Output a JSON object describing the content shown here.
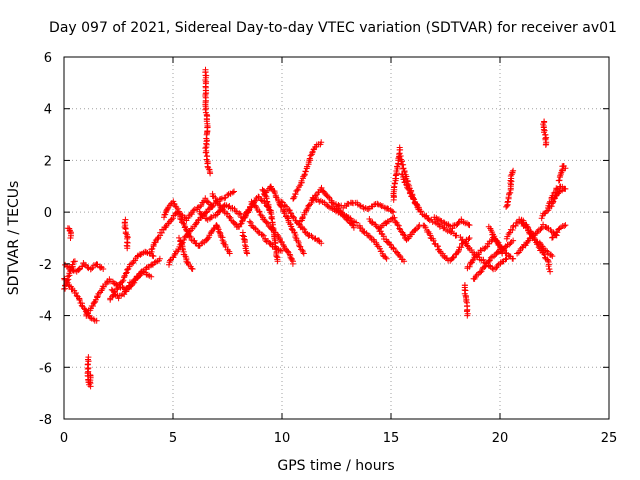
{
  "chart_data": {
    "type": "scatter",
    "title": "Day 097 of 2021, Sidereal Day-to-day VTEC variation (SDTVAR) for receiver av01",
    "xlabel": "GPS time / hours",
    "ylabel": "SDTVAR / TECUs",
    "xlim": [
      0,
      25
    ],
    "ylim": [
      -8,
      6
    ],
    "x_ticks": [
      0,
      5,
      10,
      15,
      20,
      25
    ],
    "y_ticks": [
      -8,
      -6,
      -4,
      -2,
      0,
      2,
      4,
      6
    ],
    "x_tick_labels": [
      "0",
      "5",
      "10",
      "15",
      "20",
      "25"
    ],
    "y_tick_labels": [
      "-8",
      "-6",
      "-4",
      "-2",
      "0",
      "2",
      "4",
      "6"
    ],
    "grid": true,
    "marker": "+",
    "color": "#ff0000",
    "series_name": "SDTVAR",
    "tracks": [
      [
        [
          0.0,
          -2.0
        ],
        [
          0.3,
          -2.2
        ],
        [
          0.6,
          -2.3
        ],
        [
          0.9,
          -2.0
        ],
        [
          1.2,
          -2.2
        ],
        [
          1.5,
          -2.0
        ],
        [
          1.8,
          -2.2
        ]
      ],
      [
        [
          0.0,
          -2.6
        ],
        [
          0.3,
          -2.9
        ],
        [
          0.6,
          -3.2
        ],
        [
          0.9,
          -3.7
        ],
        [
          1.2,
          -4.1
        ],
        [
          1.5,
          -4.2
        ]
      ],
      [
        [
          0.0,
          -3.0
        ],
        [
          0.2,
          -2.5
        ],
        [
          0.4,
          -2.0
        ],
        [
          0.5,
          -1.9
        ]
      ],
      [
        [
          0.2,
          -0.6
        ],
        [
          0.3,
          -0.8
        ],
        [
          0.3,
          -1.0
        ]
      ],
      [
        [
          1.1,
          -5.6
        ],
        [
          1.1,
          -6.2
        ],
        [
          1.1,
          -6.5
        ],
        [
          1.2,
          -6.7
        ],
        [
          1.2,
          -6.3
        ]
      ],
      [
        [
          1.0,
          -4.0
        ],
        [
          1.4,
          -3.5
        ],
        [
          1.7,
          -3.0
        ],
        [
          2.1,
          -2.6
        ],
        [
          2.4,
          -2.8
        ],
        [
          2.8,
          -3.0
        ],
        [
          3.2,
          -2.6
        ],
        [
          3.6,
          -2.3
        ],
        [
          4.0,
          -2.5
        ]
      ],
      [
        [
          2.1,
          -3.4
        ],
        [
          2.4,
          -3.0
        ],
        [
          2.7,
          -2.6
        ],
        [
          3.0,
          -2.1
        ],
        [
          3.4,
          -1.7
        ],
        [
          3.7,
          -1.5
        ],
        [
          4.1,
          -1.7
        ]
      ],
      [
        [
          2.2,
          -3.0
        ],
        [
          2.5,
          -3.3
        ],
        [
          2.8,
          -3.1
        ],
        [
          3.1,
          -2.8
        ],
        [
          3.4,
          -2.5
        ],
        [
          3.7,
          -2.2
        ],
        [
          4.1,
          -2.0
        ],
        [
          4.4,
          -1.8
        ]
      ],
      [
        [
          2.8,
          -0.3
        ],
        [
          2.8,
          -0.6
        ],
        [
          2.9,
          -1.0
        ],
        [
          2.9,
          -1.4
        ]
      ],
      [
        [
          4.0,
          -1.5
        ],
        [
          4.3,
          -1.0
        ],
        [
          4.6,
          -0.6
        ],
        [
          4.9,
          -0.3
        ],
        [
          5.2,
          0.0
        ],
        [
          5.5,
          -0.5
        ],
        [
          5.8,
          -1.0
        ],
        [
          6.2,
          -1.3
        ],
        [
          6.6,
          -1.0
        ],
        [
          7.0,
          -0.5
        ]
      ],
      [
        [
          4.6,
          -0.2
        ],
        [
          4.8,
          0.2
        ],
        [
          5.0,
          0.4
        ],
        [
          5.3,
          0.0
        ],
        [
          5.6,
          -0.3
        ],
        [
          5.9,
          0.0
        ],
        [
          6.2,
          0.2
        ],
        [
          6.5,
          0.5
        ],
        [
          6.8,
          0.2
        ]
      ],
      [
        [
          4.8,
          -2.0
        ],
        [
          5.1,
          -1.6
        ],
        [
          5.4,
          -1.2
        ],
        [
          5.7,
          -0.8
        ],
        [
          6.0,
          -0.5
        ],
        [
          6.3,
          -0.2
        ],
        [
          6.6,
          0.1
        ],
        [
          7.0,
          0.4
        ],
        [
          7.4,
          0.6
        ],
        [
          7.8,
          0.8
        ]
      ],
      [
        [
          5.3,
          -1.0
        ],
        [
          5.5,
          -1.6
        ],
        [
          5.7,
          -2.0
        ],
        [
          5.9,
          -2.2
        ]
      ],
      [
        [
          6.5,
          5.5
        ],
        [
          6.5,
          5.2
        ],
        [
          6.5,
          4.8
        ],
        [
          6.5,
          4.4
        ],
        [
          6.5,
          4.0
        ],
        [
          6.6,
          3.3
        ],
        [
          6.5,
          2.4
        ],
        [
          6.6,
          1.8
        ],
        [
          6.7,
          1.5
        ]
      ],
      [
        [
          6.2,
          0.0
        ],
        [
          6.6,
          -0.3
        ],
        [
          7.0,
          -0.1
        ],
        [
          7.4,
          0.3
        ],
        [
          7.8,
          0.1
        ],
        [
          8.2,
          -0.2
        ],
        [
          8.6,
          0.2
        ]
      ],
      [
        [
          6.8,
          0.7
        ],
        [
          7.1,
          0.3
        ],
        [
          7.4,
          0.0
        ],
        [
          7.7,
          -0.3
        ],
        [
          8.0,
          -0.6
        ],
        [
          8.3,
          -0.2
        ],
        [
          8.6,
          0.3
        ],
        [
          8.9,
          0.6
        ],
        [
          9.2,
          0.4
        ],
        [
          9.5,
          0.0
        ]
      ],
      [
        [
          7.0,
          -0.5
        ],
        [
          7.2,
          -0.9
        ],
        [
          7.4,
          -1.3
        ],
        [
          7.6,
          -1.6
        ]
      ],
      [
        [
          8.2,
          -0.8
        ],
        [
          8.3,
          -1.2
        ],
        [
          8.4,
          -1.6
        ]
      ],
      [
        [
          8.5,
          -0.4
        ],
        [
          8.8,
          -0.7
        ],
        [
          9.1,
          -0.9
        ],
        [
          9.4,
          -1.2
        ],
        [
          9.7,
          -1.4
        ],
        [
          10.0,
          -1.5
        ]
      ],
      [
        [
          8.6,
          0.4
        ],
        [
          8.9,
          0.1
        ],
        [
          9.2,
          -0.3
        ],
        [
          9.5,
          -0.6
        ],
        [
          9.8,
          -0.9
        ],
        [
          10.1,
          -1.3
        ],
        [
          10.4,
          -1.7
        ],
        [
          10.5,
          -2.0
        ]
      ],
      [
        [
          9.1,
          0.9
        ],
        [
          9.3,
          0.5
        ],
        [
          9.5,
          -0.1
        ],
        [
          9.6,
          -0.7
        ],
        [
          9.7,
          -1.3
        ],
        [
          9.8,
          -1.9
        ]
      ],
      [
        [
          9.2,
          0.7
        ],
        [
          9.5,
          1.0
        ],
        [
          9.8,
          0.5
        ],
        [
          10.1,
          0.0
        ],
        [
          10.4,
          -0.5
        ],
        [
          10.6,
          -0.9
        ],
        [
          10.8,
          -1.3
        ],
        [
          11.0,
          -1.6
        ]
      ],
      [
        [
          10.0,
          0.4
        ],
        [
          10.3,
          0.1
        ],
        [
          10.6,
          -0.3
        ],
        [
          10.9,
          -0.6
        ],
        [
          11.2,
          -0.9
        ],
        [
          11.5,
          -1.0
        ],
        [
          11.8,
          -1.2
        ]
      ],
      [
        [
          10.5,
          0.5
        ],
        [
          10.8,
          1.0
        ],
        [
          11.1,
          1.6
        ],
        [
          11.3,
          2.1
        ],
        [
          11.5,
          2.5
        ],
        [
          11.8,
          2.7
        ]
      ],
      [
        [
          10.8,
          -0.5
        ],
        [
          11.0,
          -0.1
        ],
        [
          11.2,
          0.2
        ],
        [
          11.5,
          0.6
        ],
        [
          11.8,
          0.9
        ],
        [
          12.1,
          0.6
        ],
        [
          12.4,
          0.3
        ],
        [
          12.7,
          0.0
        ],
        [
          13.0,
          -0.3
        ],
        [
          13.3,
          -0.6
        ]
      ],
      [
        [
          11.4,
          0.6
        ],
        [
          11.8,
          0.4
        ],
        [
          12.2,
          0.2
        ],
        [
          12.6,
          0.0
        ],
        [
          13.0,
          -0.2
        ],
        [
          13.4,
          -0.4
        ]
      ],
      [
        [
          12.5,
          0.3
        ],
        [
          12.8,
          0.2
        ],
        [
          13.2,
          0.4
        ],
        [
          13.5,
          0.3
        ],
        [
          13.9,
          0.1
        ],
        [
          14.3,
          0.3
        ],
        [
          14.7,
          0.2
        ],
        [
          15.1,
          0.0
        ]
      ],
      [
        [
          13.5,
          -0.5
        ],
        [
          13.8,
          -0.8
        ],
        [
          14.1,
          -1.0
        ],
        [
          14.4,
          -1.3
        ],
        [
          14.6,
          -1.6
        ],
        [
          14.8,
          -1.8
        ]
      ],
      [
        [
          14.0,
          -0.3
        ],
        [
          14.4,
          -0.6
        ],
        [
          14.7,
          -1.0
        ],
        [
          15.0,
          -1.3
        ],
        [
          15.3,
          -1.6
        ],
        [
          15.6,
          -1.9
        ]
      ],
      [
        [
          14.5,
          -0.6
        ],
        [
          14.8,
          -0.4
        ],
        [
          15.1,
          -0.2
        ],
        [
          15.4,
          -0.6
        ],
        [
          15.7,
          -1.1
        ],
        [
          16.0,
          -0.8
        ],
        [
          16.3,
          -0.5
        ]
      ],
      [
        [
          15.1,
          0.5
        ],
        [
          15.2,
          1.2
        ],
        [
          15.3,
          1.8
        ],
        [
          15.4,
          2.3
        ],
        [
          15.4,
          2.5
        ]
      ],
      [
        [
          15.4,
          2.2
        ],
        [
          15.6,
          1.6
        ],
        [
          15.8,
          1.1
        ],
        [
          16.0,
          0.6
        ],
        [
          16.2,
          0.2
        ],
        [
          16.5,
          -0.1
        ],
        [
          16.8,
          -0.3
        ],
        [
          17.2,
          -0.5
        ],
        [
          17.6,
          -0.7
        ],
        [
          18.0,
          -0.9
        ]
      ],
      [
        [
          15.5,
          1.5
        ],
        [
          15.7,
          1.0
        ],
        [
          15.9,
          0.7
        ],
        [
          16.1,
          0.4
        ],
        [
          16.3,
          0.1
        ]
      ],
      [
        [
          16.5,
          -0.5
        ],
        [
          16.8,
          -0.9
        ],
        [
          17.1,
          -1.3
        ],
        [
          17.4,
          -1.7
        ],
        [
          17.7,
          -1.9
        ],
        [
          18.0,
          -1.6
        ],
        [
          18.3,
          -1.2
        ],
        [
          18.6,
          -1.0
        ]
      ],
      [
        [
          17.0,
          -0.2
        ],
        [
          17.4,
          -0.4
        ],
        [
          17.8,
          -0.6
        ],
        [
          18.2,
          -0.3
        ],
        [
          18.6,
          -0.5
        ]
      ],
      [
        [
          18.4,
          -2.8
        ],
        [
          18.4,
          -3.2
        ],
        [
          18.5,
          -3.6
        ],
        [
          18.5,
          -4.0
        ]
      ],
      [
        [
          18.2,
          -1.0
        ],
        [
          18.5,
          -1.3
        ],
        [
          18.8,
          -1.6
        ],
        [
          19.1,
          -1.8
        ],
        [
          19.4,
          -2.0
        ],
        [
          19.7,
          -2.2
        ],
        [
          20.0,
          -2.0
        ],
        [
          20.3,
          -1.8
        ]
      ],
      [
        [
          18.5,
          -2.2
        ],
        [
          18.8,
          -1.8
        ],
        [
          19.1,
          -1.5
        ],
        [
          19.4,
          -1.3
        ],
        [
          19.7,
          -1.0
        ],
        [
          20.0,
          -1.3
        ],
        [
          20.3,
          -1.6
        ],
        [
          20.6,
          -1.8
        ]
      ],
      [
        [
          18.8,
          -2.6
        ],
        [
          19.1,
          -2.3
        ],
        [
          19.4,
          -2.0
        ],
        [
          19.7,
          -1.7
        ],
        [
          20.0,
          -1.5
        ],
        [
          20.3,
          -1.3
        ],
        [
          20.6,
          -1.1
        ]
      ],
      [
        [
          19.5,
          -0.6
        ],
        [
          19.7,
          -0.9
        ],
        [
          19.9,
          -1.2
        ],
        [
          20.1,
          -1.6
        ]
      ],
      [
        [
          20.3,
          0.2
        ],
        [
          20.4,
          0.5
        ],
        [
          20.5,
          0.9
        ],
        [
          20.5,
          1.3
        ],
        [
          20.6,
          1.6
        ]
      ],
      [
        [
          20.3,
          -1.0
        ],
        [
          20.6,
          -0.6
        ],
        [
          20.9,
          -0.3
        ],
        [
          21.2,
          -0.6
        ],
        [
          21.5,
          -1.0
        ],
        [
          21.8,
          -1.2
        ],
        [
          22.1,
          -1.5
        ],
        [
          22.4,
          -1.7
        ]
      ],
      [
        [
          20.8,
          -1.6
        ],
        [
          21.1,
          -1.3
        ],
        [
          21.4,
          -1.0
        ],
        [
          21.7,
          -0.8
        ],
        [
          22.0,
          -0.5
        ],
        [
          22.3,
          -0.7
        ],
        [
          22.6,
          -0.9
        ]
      ],
      [
        [
          21.0,
          -0.3
        ],
        [
          21.3,
          -0.6
        ],
        [
          21.6,
          -1.1
        ],
        [
          21.9,
          -1.5
        ],
        [
          22.2,
          -1.9
        ],
        [
          22.3,
          -2.3
        ]
      ],
      [
        [
          22.0,
          3.5
        ],
        [
          22.0,
          3.2
        ],
        [
          22.1,
          2.9
        ],
        [
          22.1,
          2.6
        ]
      ],
      [
        [
          21.9,
          -0.2
        ],
        [
          22.1,
          0.0
        ],
        [
          22.3,
          0.2
        ],
        [
          22.5,
          0.5
        ],
        [
          22.7,
          0.8
        ],
        [
          22.9,
          0.9
        ]
      ],
      [
        [
          22.4,
          -1.0
        ],
        [
          22.6,
          -0.8
        ],
        [
          22.8,
          -0.6
        ],
        [
          23.0,
          -0.5
        ]
      ],
      [
        [
          22.7,
          1.2
        ],
        [
          22.8,
          1.5
        ],
        [
          22.9,
          1.8
        ],
        [
          23.0,
          1.7
        ]
      ],
      [
        [
          22.2,
          0.2
        ],
        [
          22.4,
          0.6
        ],
        [
          22.6,
          0.9
        ],
        [
          22.8,
          1.0
        ],
        [
          23.0,
          0.9
        ]
      ]
    ]
  }
}
